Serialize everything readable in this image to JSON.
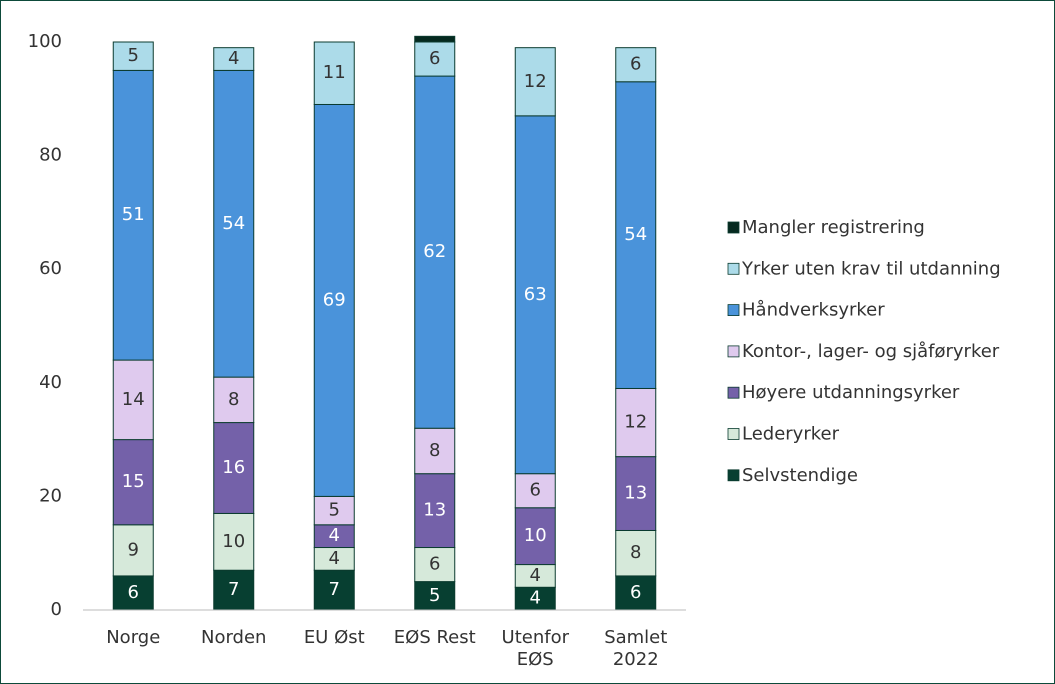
{
  "chart_data": {
    "type": "stacked_bar",
    "categories": [
      [
        "Norge"
      ],
      [
        "Norden"
      ],
      [
        "EU Øst"
      ],
      [
        "EØS Rest"
      ],
      [
        "Utenfor",
        "EØS"
      ],
      [
        "Samlet",
        "2022"
      ]
    ],
    "series": [
      {
        "name": "Selvstendige",
        "color": "#073f31",
        "label_color": "#ffffff",
        "values": [
          6,
          7,
          7,
          5,
          4,
          6
        ]
      },
      {
        "name": "Lederyrker",
        "color": "#d6e9da",
        "label_color": "#333333",
        "values": [
          9,
          10,
          4,
          6,
          4,
          8
        ]
      },
      {
        "name": "Høyere utdanningsyrker",
        "color": "#7461a9",
        "label_color": "#ffffff",
        "values": [
          15,
          16,
          4,
          13,
          10,
          13
        ]
      },
      {
        "name": "Kontor-, lager- og sjåføryrker",
        "color": "#dfcaee",
        "label_color": "#333333",
        "values": [
          14,
          8,
          5,
          8,
          6,
          12
        ]
      },
      {
        "name": "Håndverksyrker",
        "color": "#4a93da",
        "label_color": "#ffffff",
        "values": [
          51,
          54,
          69,
          62,
          63,
          54
        ]
      },
      {
        "name": "Yrker uten krav til utdanning",
        "color": "#acdbe9",
        "label_color": "#333333",
        "values": [
          5,
          4,
          11,
          6,
          12,
          6
        ]
      },
      {
        "name": "Mangler registrering",
        "color": "#05291f",
        "labels": false,
        "values": [
          0,
          0,
          0,
          1,
          0,
          0
        ]
      }
    ],
    "ylim": [
      0,
      100
    ],
    "yticks": [
      0,
      20,
      40,
      60,
      80,
      100
    ],
    "grid": false,
    "legend": "right"
  }
}
